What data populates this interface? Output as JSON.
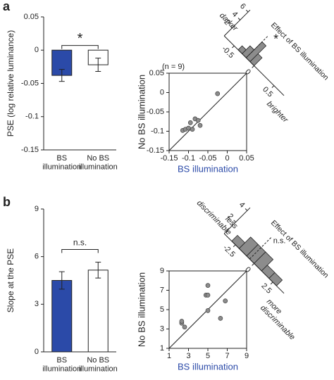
{
  "chart_data": [
    {
      "type": "bar",
      "panel_label": "a",
      "ylabel": "PSE (log relative luminance)",
      "categories": [
        "BS illumination",
        "No BS illumination"
      ],
      "values": [
        -0.038,
        -0.022
      ],
      "errors": [
        0.009,
        0.01
      ],
      "colors": [
        "#2b4aa8",
        "#ffffff"
      ],
      "ylim": [
        -0.15,
        0.05
      ],
      "yticks": [
        -0.15,
        -0.1,
        -0.05,
        0,
        0.05
      ],
      "significance": "*"
    },
    {
      "type": "scatter",
      "xlabel": "BS illumination",
      "xlabel_color": "#2b4aa8",
      "ylabel": "No BS illumination",
      "annotation": "(n = 9)",
      "x": [
        -0.115,
        -0.108,
        -0.1,
        -0.095,
        -0.09,
        -0.083,
        -0.075,
        -0.07,
        -0.025
      ],
      "y": [
        -0.098,
        -0.095,
        -0.092,
        -0.078,
        -0.095,
        -0.068,
        -0.072,
        -0.085,
        -0.003
      ],
      "point_color": "#8c8c8c",
      "xlim": [
        -0.15,
        0.05
      ],
      "ylim": [
        -0.15,
        0.05
      ],
      "xticks": [
        -0.15,
        -0.1,
        -0.05,
        0,
        0.05
      ],
      "yticks": [
        -0.15,
        -0.1,
        -0.05,
        0,
        0.05
      ],
      "histogram": {
        "title": "Effect of BS illumination",
        "bins": [
          -0.4,
          -0.3,
          -0.2,
          -0.1,
          0
        ],
        "counts": [
          1,
          2,
          4,
          2
        ],
        "range": [
          -0.75,
          0.75
        ],
        "ticks": [
          -0.5,
          0,
          0.5
        ],
        "countlim": [
          0,
          6.5
        ],
        "count_ticks": [
          2,
          4,
          6
        ],
        "mean": -0.2,
        "significance": "*",
        "left_label": "darker",
        "right_label": "brighter",
        "color": "#8c8c8c"
      }
    },
    {
      "type": "bar",
      "panel_label": "b",
      "ylabel": "Slope at the PSE",
      "categories": [
        "BS illumination",
        "No BS illumination"
      ],
      "values": [
        4.5,
        5.15
      ],
      "errors": [
        0.55,
        0.5
      ],
      "colors": [
        "#2b4aa8",
        "#ffffff"
      ],
      "ylim": [
        0,
        9
      ],
      "yticks": [
        0,
        3,
        6,
        9
      ],
      "significance": "n.s."
    },
    {
      "type": "scatter",
      "xlabel": "BS illumination",
      "xlabel_color": "#2b4aa8",
      "ylabel": "No BS illumination",
      "x": [
        2.3,
        2.3,
        2.6,
        4.8,
        5,
        5,
        5,
        6.3,
        6.8
      ],
      "y": [
        3.6,
        3.8,
        3.2,
        6.5,
        6.5,
        7.5,
        4.9,
        4.1,
        5.9
      ],
      "point_color": "#8c8c8c",
      "xlim": [
        1,
        9
      ],
      "ylim": [
        1,
        9
      ],
      "xticks": [
        1,
        3,
        5,
        7,
        9
      ],
      "yticks": [
        1,
        3,
        5,
        7,
        9
      ],
      "histogram": {
        "title": "Effect of BS illumination",
        "bins": [
          -3,
          -2,
          -1,
          0,
          1,
          2,
          3
        ],
        "counts": [
          1,
          2,
          2,
          2,
          1,
          1
        ],
        "range": [
          -4,
          4
        ],
        "ticks": [
          -2.5,
          0,
          2.5
        ],
        "countlim": [
          0,
          4.5
        ],
        "count_ticks": [
          2,
          4
        ],
        "mean": -0.6,
        "significance": "n.s.",
        "left_label": "less discriminable",
        "right_label": "more discriminable",
        "color": "#8c8c8c"
      }
    }
  ]
}
